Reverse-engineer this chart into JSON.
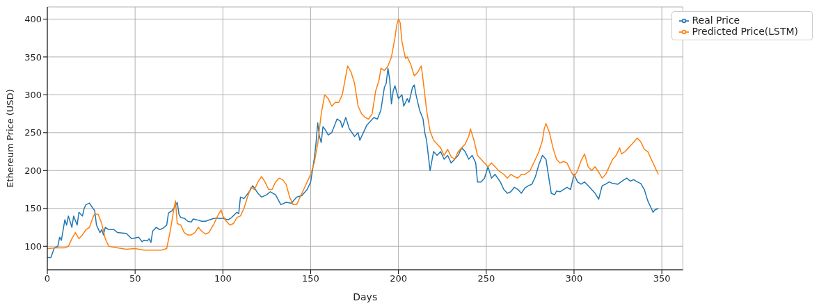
{
  "chart_data": {
    "type": "line",
    "xlabel": "Days",
    "ylabel": "Ethereum Price (USD)",
    "xlim": [
      0,
      362
    ],
    "xticks": [
      0,
      50,
      100,
      150,
      200,
      250,
      300,
      350
    ],
    "ylim": [
      69,
      416
    ],
    "yticks": [
      100,
      150,
      200,
      250,
      300,
      350,
      400
    ],
    "grid": true,
    "legend": "top right",
    "marker": "none",
    "line_style": "solid",
    "series": [
      {
        "name": "Real Price",
        "color": "#1f77b4",
        "x": [
          0,
          2,
          4,
          6,
          7,
          8,
          10,
          11,
          12,
          14,
          15,
          17,
          18,
          20,
          21,
          22,
          24,
          26,
          27,
          28,
          30,
          31,
          32,
          33,
          35,
          38,
          40,
          45,
          48,
          50,
          52,
          54,
          55,
          57,
          58,
          59,
          60,
          62,
          64,
          66,
          68,
          69,
          71,
          72,
          74,
          75,
          76,
          78,
          80,
          82,
          83,
          85,
          88,
          90,
          95,
          100,
          103,
          105,
          108,
          109,
          110,
          112,
          115,
          117,
          120,
          122,
          125,
          127,
          130,
          133,
          136,
          139,
          142,
          145,
          148,
          150,
          152,
          153,
          154,
          155,
          156,
          157,
          158,
          160,
          162,
          165,
          167,
          168,
          170,
          172,
          175,
          177,
          178,
          180,
          182,
          184,
          186,
          188,
          190,
          192,
          193,
          194,
          195,
          196,
          197,
          198,
          200,
          202,
          203,
          205,
          206,
          208,
          209,
          210,
          212,
          214,
          215,
          216,
          218,
          220,
          222,
          224,
          226,
          228,
          230,
          232,
          234,
          236,
          238,
          240,
          242,
          244,
          245,
          247,
          249,
          251,
          253,
          255,
          258,
          260,
          262,
          264,
          266,
          268,
          270,
          272,
          274,
          276,
          278,
          280,
          282,
          284,
          286,
          287,
          289,
          290,
          292,
          294,
          296,
          298,
          300,
          302,
          304,
          306,
          308,
          310,
          312,
          314,
          316,
          318,
          320,
          322,
          325,
          328,
          330,
          332,
          334,
          336,
          338,
          340,
          342,
          344,
          345,
          346,
          348
        ],
        "values": [
          85,
          85,
          98,
          100,
          112,
          108,
          135,
          128,
          140,
          125,
          140,
          128,
          145,
          140,
          150,
          155,
          157,
          150,
          147,
          128,
          118,
          122,
          115,
          125,
          122,
          122,
          118,
          117,
          110,
          111,
          112,
          106,
          108,
          107,
          110,
          105,
          120,
          125,
          122,
          124,
          128,
          144,
          147,
          150,
          158,
          142,
          138,
          137,
          133,
          132,
          136,
          135,
          133,
          133,
          137,
          137,
          135,
          138,
          145,
          143,
          165,
          163,
          172,
          180,
          170,
          165,
          168,
          172,
          168,
          155,
          158,
          157,
          165,
          167,
          175,
          185,
          215,
          235,
          263,
          245,
          237,
          258,
          255,
          247,
          250,
          268,
          265,
          257,
          270,
          255,
          245,
          250,
          240,
          250,
          260,
          265,
          270,
          268,
          280,
          310,
          315,
          335,
          320,
          288,
          305,
          312,
          295,
          300,
          285,
          295,
          290,
          310,
          313,
          300,
          280,
          268,
          250,
          240,
          200,
          225,
          220,
          225,
          215,
          220,
          210,
          215,
          220,
          230,
          225,
          215,
          220,
          210,
          185,
          185,
          190,
          205,
          190,
          195,
          185,
          175,
          170,
          172,
          178,
          175,
          170,
          177,
          180,
          182,
          192,
          208,
          220,
          215,
          185,
          170,
          168,
          173,
          172,
          175,
          178,
          175,
          195,
          185,
          182,
          185,
          180,
          175,
          170,
          162,
          180,
          182,
          185,
          183,
          182,
          187,
          190,
          186,
          188,
          185,
          183,
          175,
          160,
          150,
          145,
          148,
          150
        ]
      },
      {
        "name": "Predicted Price(LSTM)",
        "color": "#ff7f0e",
        "x": [
          0,
          5,
          10,
          12,
          14,
          16,
          18,
          20,
          22,
          24,
          26,
          27,
          29,
          31,
          33,
          35,
          40,
          45,
          50,
          55,
          60,
          65,
          68,
          70,
          72,
          73,
          74,
          76,
          78,
          80,
          82,
          84,
          86,
          88,
          90,
          92,
          95,
          97,
          99,
          100,
          102,
          104,
          106,
          108,
          110,
          112,
          114,
          116,
          118,
          120,
          122,
          124,
          126,
          128,
          130,
          132,
          134,
          136,
          138,
          140,
          142,
          144,
          146,
          148,
          150,
          152,
          154,
          156,
          158,
          160,
          162,
          164,
          166,
          168,
          170,
          171,
          173,
          175,
          177,
          179,
          181,
          183,
          185,
          187,
          189,
          190,
          192,
          194,
          196,
          198,
          199,
          200,
          201,
          202,
          204,
          205,
          207,
          209,
          211,
          213,
          214,
          216,
          218,
          220,
          222,
          224,
          226,
          228,
          230,
          232,
          234,
          236,
          238,
          240,
          241,
          243,
          245,
          247,
          249,
          251,
          253,
          255,
          257,
          260,
          262,
          264,
          266,
          268,
          270,
          272,
          275,
          278,
          280,
          282,
          283,
          284,
          286,
          288,
          290,
          292,
          294,
          296,
          298,
          300,
          302,
          304,
          306,
          308,
          310,
          312,
          314,
          316,
          318,
          320,
          322,
          324,
          326,
          327,
          329,
          331,
          333,
          336,
          338,
          340,
          342,
          344,
          346,
          348
        ],
        "values": [
          97,
          98,
          98,
          100,
          110,
          118,
          110,
          115,
          122,
          125,
          138,
          143,
          142,
          130,
          110,
          100,
          98,
          96,
          97,
          95,
          95,
          95,
          97,
          120,
          148,
          160,
          130,
          128,
          118,
          115,
          115,
          118,
          125,
          120,
          116,
          118,
          130,
          140,
          148,
          140,
          133,
          128,
          130,
          138,
          140,
          150,
          165,
          178,
          175,
          185,
          192,
          185,
          175,
          175,
          185,
          190,
          188,
          182,
          165,
          155,
          155,
          165,
          175,
          185,
          195,
          210,
          235,
          275,
          300,
          295,
          285,
          290,
          290,
          300,
          325,
          338,
          330,
          315,
          285,
          275,
          270,
          268,
          275,
          305,
          320,
          335,
          332,
          338,
          350,
          375,
          392,
          400,
          395,
          370,
          348,
          350,
          340,
          325,
          330,
          338,
          320,
          280,
          252,
          240,
          235,
          230,
          220,
          228,
          218,
          215,
          225,
          230,
          235,
          245,
          255,
          240,
          220,
          215,
          210,
          205,
          210,
          205,
          200,
          195,
          190,
          195,
          192,
          190,
          195,
          195,
          200,
          215,
          225,
          240,
          255,
          262,
          250,
          230,
          215,
          210,
          212,
          210,
          200,
          192,
          200,
          213,
          222,
          205,
          200,
          205,
          198,
          190,
          195,
          205,
          215,
          220,
          230,
          222,
          225,
          230,
          235,
          243,
          238,
          228,
          225,
          215,
          205,
          195
        ]
      }
    ]
  }
}
